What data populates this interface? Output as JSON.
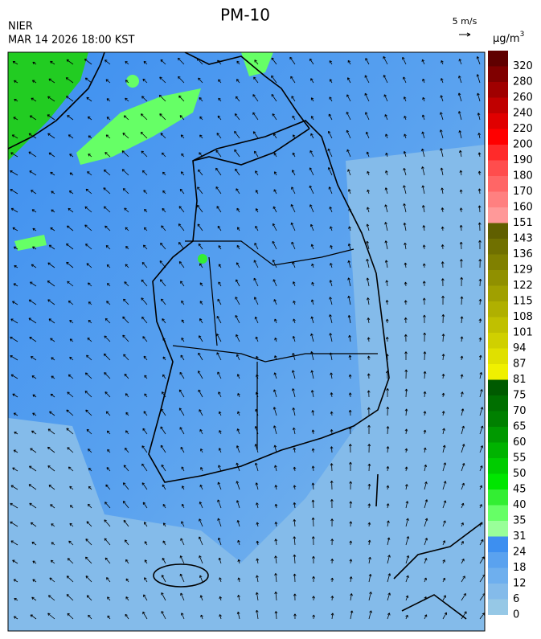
{
  "header": {
    "title": "PM-10",
    "source": "NIER",
    "datetime": "MAR 14 2026 18:00 KST",
    "wind_scale": "5 m/s"
  },
  "legend": {
    "unit": "μg/m",
    "unit_sup": "3",
    "labels": [
      "0",
      "6",
      "12",
      "18",
      "24",
      "31",
      "35",
      "40",
      "45",
      "50",
      "55",
      "60",
      "65",
      "70",
      "75",
      "81",
      "87",
      "94",
      "101",
      "108",
      "115",
      "122",
      "129",
      "136",
      "143",
      "151",
      "160",
      "170",
      "180",
      "190",
      "200",
      "220",
      "240",
      "260",
      "280",
      "320"
    ],
    "colors": [
      "#96c8e6",
      "#84bbea",
      "#6eafee",
      "#5aa2ef",
      "#3d8ff0",
      "#99ff99",
      "#66ff66",
      "#33ee33",
      "#00e600",
      "#00cc00",
      "#00b300",
      "#009900",
      "#008000",
      "#006f00",
      "#005a00",
      "#f0f000",
      "#e0e000",
      "#d0d000",
      "#c0c000",
      "#b0b000",
      "#a0a000",
      "#909000",
      "#808000",
      "#707000",
      "#605f00",
      "#ff9999",
      "#ff8080",
      "#ff6666",
      "#ff4d4d",
      "#ff2a2a",
      "#ff0000",
      "#e00000",
      "#c00000",
      "#a00000",
      "#800000",
      "#600000"
    ]
  }
}
